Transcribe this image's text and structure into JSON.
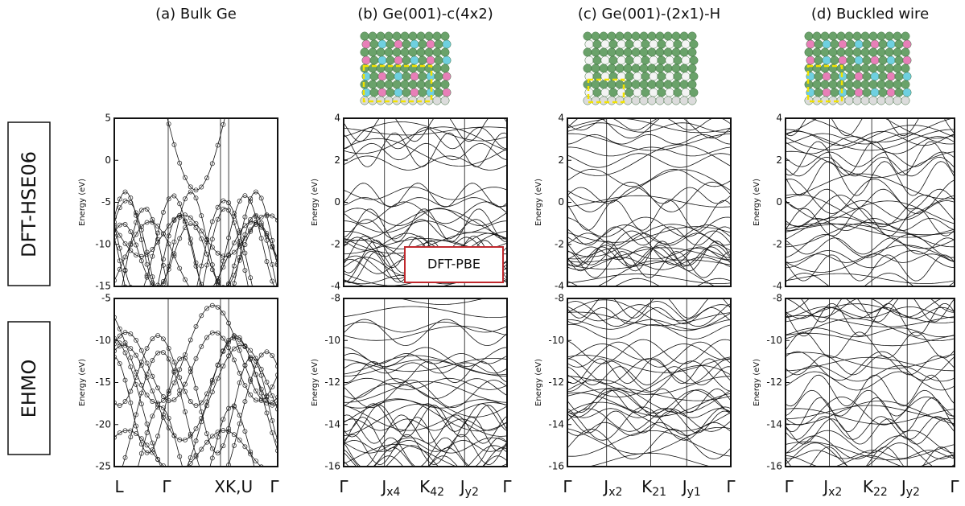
{
  "figure": {
    "row_labels": [
      "DFT-HSE06",
      "EHMO"
    ],
    "annotation": "DFT-PBE",
    "y_axis_label": "Energy (eV)",
    "panels": [
      {
        "title": "(a) Bulk Ge",
        "top_ylim": [
          -15,
          5
        ],
        "top_yticks": [
          5,
          0,
          -5,
          -10,
          -15
        ],
        "bottom_ylim": [
          -25,
          -5
        ],
        "bottom_yticks": [
          -5,
          -10,
          -15,
          -20,
          -25
        ],
        "xlabels": [
          {
            "main": "L"
          },
          {
            "main": "Γ"
          },
          {
            "main": "XK,U"
          },
          {
            "main": "Γ"
          }
        ]
      },
      {
        "title": "(b) Ge(001)-c(4x2)",
        "top_ylim": [
          -4,
          4
        ],
        "top_yticks": [
          4,
          2,
          0,
          -2,
          -4
        ],
        "bottom_ylim": [
          -16,
          -8
        ],
        "bottom_yticks": [
          -8,
          -10,
          -12,
          -14,
          -16
        ],
        "xlabels": [
          {
            "main": "Γ"
          },
          {
            "main": "J",
            "sub": "x4"
          },
          {
            "main": "K",
            "sub": "42"
          },
          {
            "main": "J",
            "sub": "y2"
          },
          {
            "main": "Γ"
          }
        ]
      },
      {
        "title": "(c) Ge(001)-(2x1)-H",
        "top_ylim": [
          -4,
          4
        ],
        "top_yticks": [
          4,
          2,
          0,
          -2,
          -4
        ],
        "bottom_ylim": [
          -16,
          -8
        ],
        "bottom_yticks": [
          -8,
          -10,
          -12,
          -14,
          -16
        ],
        "xlabels": [
          {
            "main": "Γ"
          },
          {
            "main": "J",
            "sub": "x2"
          },
          {
            "main": "K",
            "sub": "21"
          },
          {
            "main": "J",
            "sub": "y1"
          },
          {
            "main": "Γ"
          }
        ]
      },
      {
        "title": "(d) Buckled wire",
        "top_ylim": [
          -4,
          4
        ],
        "top_yticks": [
          4,
          2,
          0,
          -2,
          -4
        ],
        "bottom_ylim": [
          -16,
          -8
        ],
        "bottom_yticks": [
          -8,
          -10,
          -12,
          -14,
          -16
        ],
        "xlabels": [
          {
            "main": "Γ"
          },
          {
            "main": "J",
            "sub": "x2"
          },
          {
            "main": "K",
            "sub": "22"
          },
          {
            "main": "J",
            "sub": "y2"
          },
          {
            "main": "Γ"
          }
        ]
      }
    ]
  }
}
